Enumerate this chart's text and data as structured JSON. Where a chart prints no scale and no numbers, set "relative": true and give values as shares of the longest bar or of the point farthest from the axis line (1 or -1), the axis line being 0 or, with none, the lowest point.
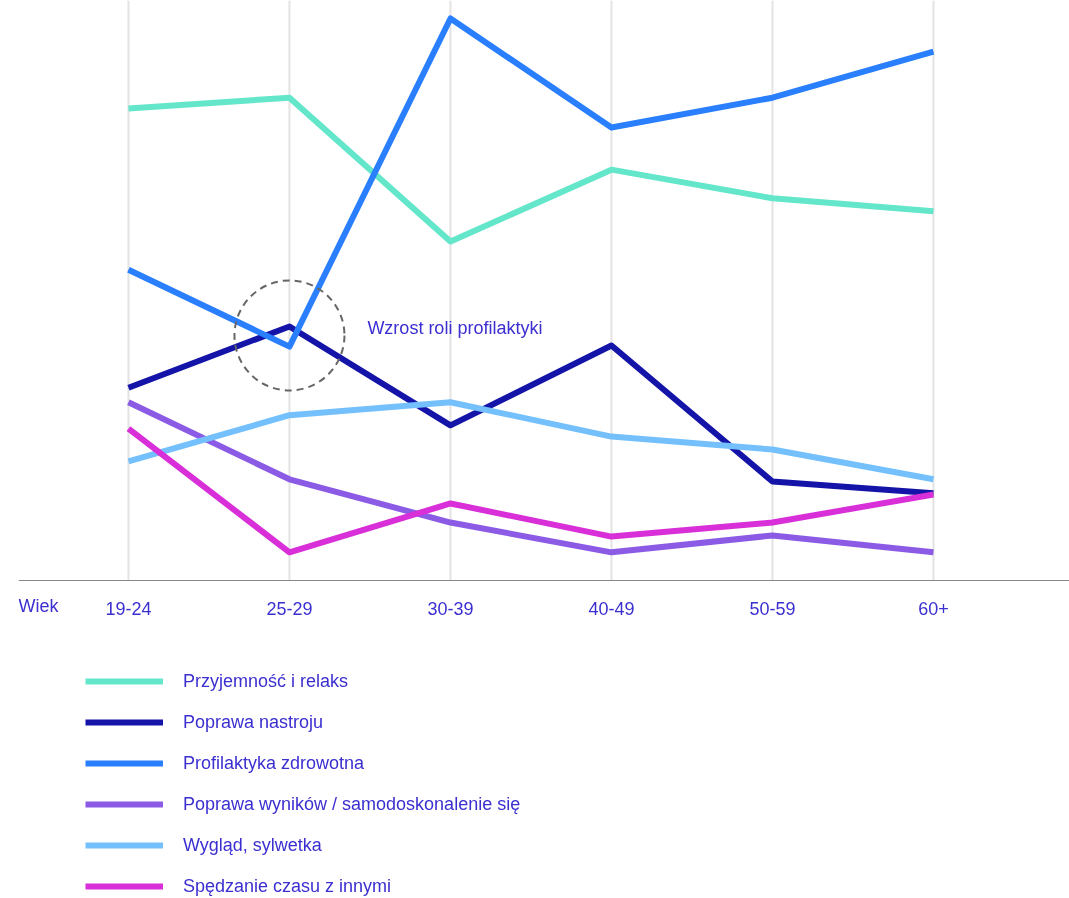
{
  "chart_data": {
    "type": "line",
    "relative": true,
    "xlabel": "Wiek",
    "categories": [
      "19-24",
      "25-29",
      "30-39",
      "40-49",
      "50-59",
      "60+"
    ],
    "series": [
      {
        "name": "Przyjemność i relaks",
        "color": "#63e6c9",
        "values": [
          0.84,
          0.859,
          0.603,
          0.731,
          0.68,
          0.657
        ]
      },
      {
        "name": "Poprawa nastroju",
        "color": "#1414a8",
        "values": [
          0.343,
          0.452,
          0.276,
          0.418,
          0.176,
          0.155
        ]
      },
      {
        "name": "Profilaktyka zdrowotna",
        "color": "#2a7fff",
        "values": [
          0.553,
          0.416,
          1,
          0.806,
          0.859,
          0.941
        ]
      },
      {
        "name": "Poprawa wyników / samodoskonalenie się",
        "color": "#8b5be6",
        "values": [
          0.317,
          0.18,
          0.103,
          0.05,
          0.08,
          0.05
        ]
      },
      {
        "name": "Wygląd, sylwetka",
        "color": "#74c0fc",
        "values": [
          0.212,
          0.294,
          0.317,
          0.256,
          0.233,
          0.18
        ]
      },
      {
        "name": "Spędzanie czasu z innymi",
        "color": "#d82fd8",
        "values": [
          0.27,
          0.05,
          0.137,
          0.078,
          0.103,
          0.153
        ]
      }
    ],
    "annotations": [
      "Wzrost roli profilaktyki"
    ],
    "grid": "x",
    "legend": "bottom",
    "marker": "none",
    "line_style": "solid"
  }
}
